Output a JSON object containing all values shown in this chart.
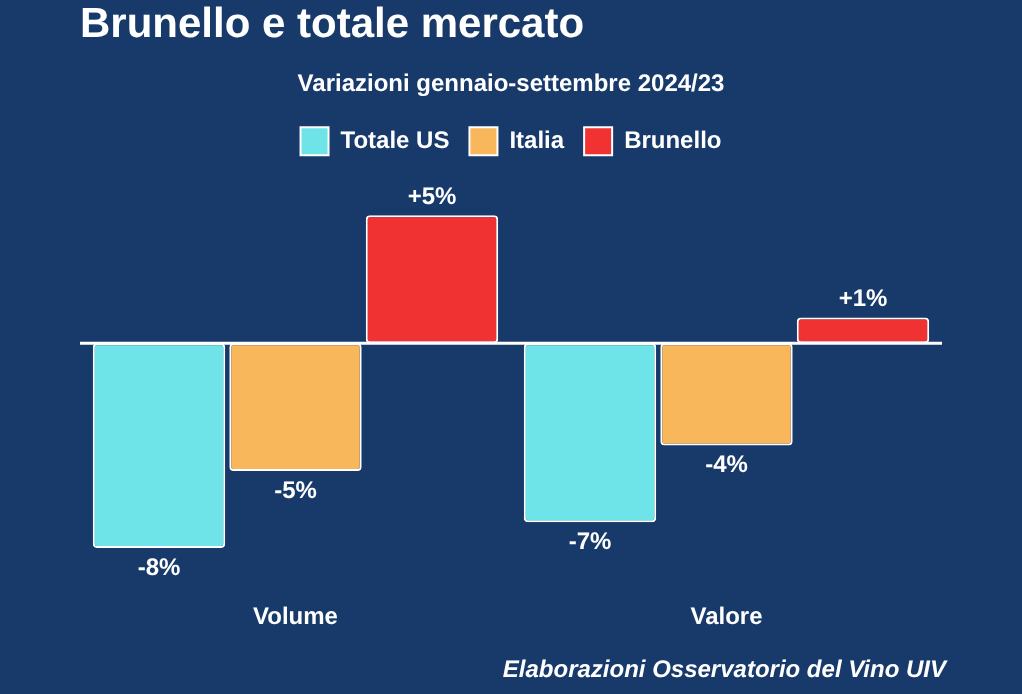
{
  "chart_data": {
    "type": "bar",
    "title": "Brunello e totale mercato",
    "subtitle": "Variazioni gennaio-settembre 2024/23",
    "categories": [
      "Volume",
      "Valore"
    ],
    "series": [
      {
        "name": "Totale US",
        "color": "#6ee3e8",
        "values": [
          -8,
          -7
        ],
        "value_labels": [
          "-8%",
          "-7%"
        ]
      },
      {
        "name": "Italia",
        "color": "#f8b75a",
        "values": [
          -5,
          -4
        ],
        "value_labels": [
          "-5%",
          "-4%"
        ]
      },
      {
        "name": "Brunello",
        "color": "#f03232",
        "values": [
          5,
          1
        ],
        "value_labels": [
          "+5%",
          "+1%"
        ]
      }
    ],
    "legend": "top",
    "grid": false,
    "annotations": [
      "Elaborazioni Osservatorio del Vino UIV"
    ]
  }
}
